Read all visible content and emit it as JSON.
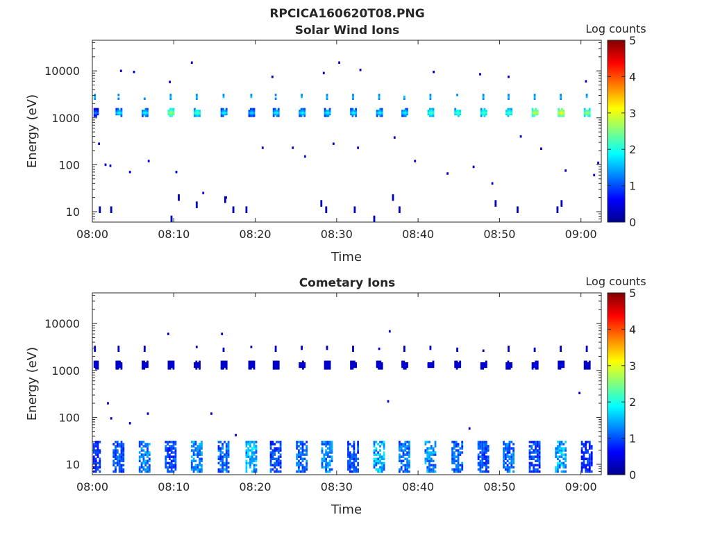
{
  "figure": {
    "title": "RPCICA160620T08.PNG"
  },
  "panels": [
    {
      "title": "Solar Wind Ions",
      "xlabel": "Time",
      "ylabel": "Energy (eV)",
      "colorbar_label": "Log counts"
    },
    {
      "title": "Cometary Ions",
      "xlabel": "Time",
      "ylabel": "Energy (eV)",
      "colorbar_label": "Log counts"
    }
  ],
  "chart_data": [
    {
      "type": "heatmap",
      "title": "Solar Wind Ions",
      "xlabel": "Time",
      "ylabel": "Energy (eV)",
      "x_ticks": [
        "08:00",
        "08:10",
        "08:20",
        "08:30",
        "08:40",
        "08:50",
        "09:00"
      ],
      "x_range_minutes": [
        0,
        62.5
      ],
      "y_ticks": [
        10,
        100,
        1000,
        10000
      ],
      "y_scale": "log",
      "y_range": [
        6,
        45000
      ],
      "colorbar": {
        "label": "Log counts",
        "ticks": [
          0,
          1,
          2,
          3,
          4,
          5
        ],
        "range": [
          0,
          5
        ],
        "colormap": "jet"
      },
      "grid": false,
      "bursts": {
        "times_min": [
          0.3,
          3.2,
          6.4,
          9.6,
          12.8,
          16.1,
          19.5,
          22.5,
          25.7,
          28.8,
          32.0,
          35.2,
          38.3,
          41.5,
          44.8,
          48.0,
          51.1,
          54.3,
          57.5,
          60.7
        ],
        "center_energy_eV": 1300,
        "peak_log_counts": [
          1.4,
          2.0,
          2.0,
          2.8,
          2.4,
          2.0,
          1.8,
          2.0,
          2.0,
          2.0,
          2.0,
          2.0,
          2.0,
          2.4,
          2.4,
          2.4,
          2.4,
          3.0,
          3.2,
          2.8
        ],
        "secondary_energy_eV": 2800,
        "secondary_log_counts": 1.6
      },
      "sparse_points": [
        {
          "t": 3.4,
          "e": 10000,
          "v": 0.4
        },
        {
          "t": 5.0,
          "e": 9500,
          "v": 0.4
        },
        {
          "t": 9.4,
          "e": 5800,
          "v": 0.4
        },
        {
          "t": 12.1,
          "e": 15000,
          "v": 0.4
        },
        {
          "t": 22.0,
          "e": 7500,
          "v": 0.4
        },
        {
          "t": 28.3,
          "e": 9000,
          "v": 0.4
        },
        {
          "t": 30.2,
          "e": 15000,
          "v": 0.4
        },
        {
          "t": 32.8,
          "e": 10500,
          "v": 0.4
        },
        {
          "t": 41.8,
          "e": 9500,
          "v": 0.4
        },
        {
          "t": 47.5,
          "e": 8500,
          "v": 0.4
        },
        {
          "t": 51.0,
          "e": 7500,
          "v": 0.4
        },
        {
          "t": 60.5,
          "e": 6000,
          "v": 0.4
        },
        {
          "t": 0.7,
          "e": 280,
          "v": 0.4
        },
        {
          "t": 1.5,
          "e": 100,
          "v": 0.4
        },
        {
          "t": 2.1,
          "e": 95,
          "v": 0.4
        },
        {
          "t": 4.5,
          "e": 70,
          "v": 0.4
        },
        {
          "t": 6.8,
          "e": 120,
          "v": 0.4
        },
        {
          "t": 10.2,
          "e": 70,
          "v": 0.4
        },
        {
          "t": 13.5,
          "e": 25,
          "v": 0.6
        },
        {
          "t": 16.3,
          "e": 20,
          "v": 0.6
        },
        {
          "t": 20.8,
          "e": 230,
          "v": 0.4
        },
        {
          "t": 24.5,
          "e": 230,
          "v": 0.4
        },
        {
          "t": 26.0,
          "e": 150,
          "v": 0.4
        },
        {
          "t": 29.5,
          "e": 280,
          "v": 0.4
        },
        {
          "t": 32.5,
          "e": 230,
          "v": 0.4
        },
        {
          "t": 37.0,
          "e": 380,
          "v": 0.4
        },
        {
          "t": 39.5,
          "e": 120,
          "v": 0.4
        },
        {
          "t": 43.5,
          "e": 65,
          "v": 0.4
        },
        {
          "t": 46.7,
          "e": 90,
          "v": 0.4
        },
        {
          "t": 49.0,
          "e": 40,
          "v": 0.4
        },
        {
          "t": 52.5,
          "e": 400,
          "v": 0.4
        },
        {
          "t": 55.0,
          "e": 220,
          "v": 0.4
        },
        {
          "t": 58.0,
          "e": 75,
          "v": 0.4
        },
        {
          "t": 61.5,
          "e": 60,
          "v": 0.4
        },
        {
          "t": 62.0,
          "e": 110,
          "v": 0.4
        }
      ],
      "low_energy_streaks": [
        {
          "t": 0.8,
          "e": 11,
          "v": 0.3
        },
        {
          "t": 2.2,
          "e": 11,
          "v": 0.3
        },
        {
          "t": 9.6,
          "e": 7,
          "v": 0.3
        },
        {
          "t": 10.5,
          "e": 20,
          "v": 0.3
        },
        {
          "t": 12.7,
          "e": 14,
          "v": 0.3
        },
        {
          "t": 16.2,
          "e": 18,
          "v": 0.3
        },
        {
          "t": 17.2,
          "e": 11,
          "v": 0.3
        },
        {
          "t": 18.8,
          "e": 11,
          "v": 0.3
        },
        {
          "t": 28.0,
          "e": 15,
          "v": 0.3
        },
        {
          "t": 28.6,
          "e": 11,
          "v": 0.3
        },
        {
          "t": 32.1,
          "e": 11,
          "v": 0.3
        },
        {
          "t": 34.5,
          "e": 7,
          "v": 0.3
        },
        {
          "t": 36.8,
          "e": 20,
          "v": 0.3
        },
        {
          "t": 37.6,
          "e": 11,
          "v": 0.3
        },
        {
          "t": 49.4,
          "e": 15,
          "v": 0.3
        },
        {
          "t": 52.1,
          "e": 11,
          "v": 0.3
        },
        {
          "t": 57.5,
          "e": 15,
          "v": 0.3
        },
        {
          "t": 57.0,
          "e": 11,
          "v": 0.3
        }
      ]
    },
    {
      "type": "heatmap",
      "title": "Cometary Ions",
      "xlabel": "Time",
      "ylabel": "Energy (eV)",
      "x_ticks": [
        "08:00",
        "08:10",
        "08:20",
        "08:30",
        "08:40",
        "08:50",
        "09:00"
      ],
      "x_range_minutes": [
        0,
        62.5
      ],
      "y_ticks": [
        10,
        100,
        1000,
        10000
      ],
      "y_scale": "log",
      "y_range": [
        6,
        45000
      ],
      "colorbar": {
        "label": "Log counts",
        "ticks": [
          0,
          1,
          2,
          3,
          4,
          5
        ],
        "range": [
          0,
          5
        ],
        "colormap": "jet"
      },
      "grid": false,
      "bursts": {
        "times_min": [
          0.3,
          3.2,
          6.4,
          9.6,
          12.8,
          16.1,
          19.5,
          22.5,
          25.7,
          28.8,
          32.0,
          35.2,
          38.3,
          41.5,
          44.8,
          48.0,
          51.1,
          54.3,
          57.5,
          60.7
        ],
        "center_energy_eV": 1300,
        "peak_log_counts": [
          0.6,
          0.6,
          0.6,
          0.6,
          0.6,
          0.6,
          0.6,
          0.6,
          0.6,
          0.6,
          0.6,
          0.6,
          0.6,
          0.6,
          0.6,
          0.6,
          0.6,
          0.8,
          0.8,
          0.6
        ],
        "secondary_energy_eV": 2900,
        "secondary_log_counts": 0.5
      },
      "sparse_points": [
        {
          "t": 9.2,
          "e": 6000,
          "v": 0.4
        },
        {
          "t": 15.8,
          "e": 6000,
          "v": 0.4
        },
        {
          "t": 36.4,
          "e": 6800,
          "v": 0.4
        },
        {
          "t": 1.8,
          "e": 200,
          "v": 0.5
        },
        {
          "t": 2.2,
          "e": 95,
          "v": 0.4
        },
        {
          "t": 4.5,
          "e": 75,
          "v": 0.4
        },
        {
          "t": 6.7,
          "e": 120,
          "v": 0.4
        },
        {
          "t": 14.5,
          "e": 120,
          "v": 0.4
        },
        {
          "t": 17.5,
          "e": 42,
          "v": 0.4
        },
        {
          "t": 36.2,
          "e": 220,
          "v": 0.4
        },
        {
          "t": 46.2,
          "e": 58,
          "v": 0.4
        },
        {
          "t": 59.7,
          "e": 330,
          "v": 0.4
        }
      ],
      "low_energy_clusters": {
        "times_min": [
          0.3,
          3.2,
          6.4,
          9.6,
          12.8,
          16.1,
          19.5,
          22.5,
          25.7,
          28.8,
          32.0,
          35.2,
          38.3,
          41.5,
          44.8,
          48.0,
          51.1,
          54.3,
          57.5,
          60.7
        ],
        "energy_range_eV": [
          7,
          30
        ],
        "peak_log_counts": [
          1.0,
          1.2,
          1.6,
          1.2,
          1.6,
          1.4,
          1.8,
          1.2,
          1.4,
          1.6,
          1.2,
          1.8,
          1.4,
          1.6,
          1.4,
          1.2,
          1.4,
          1.2,
          1.8,
          1.0
        ]
      }
    }
  ]
}
